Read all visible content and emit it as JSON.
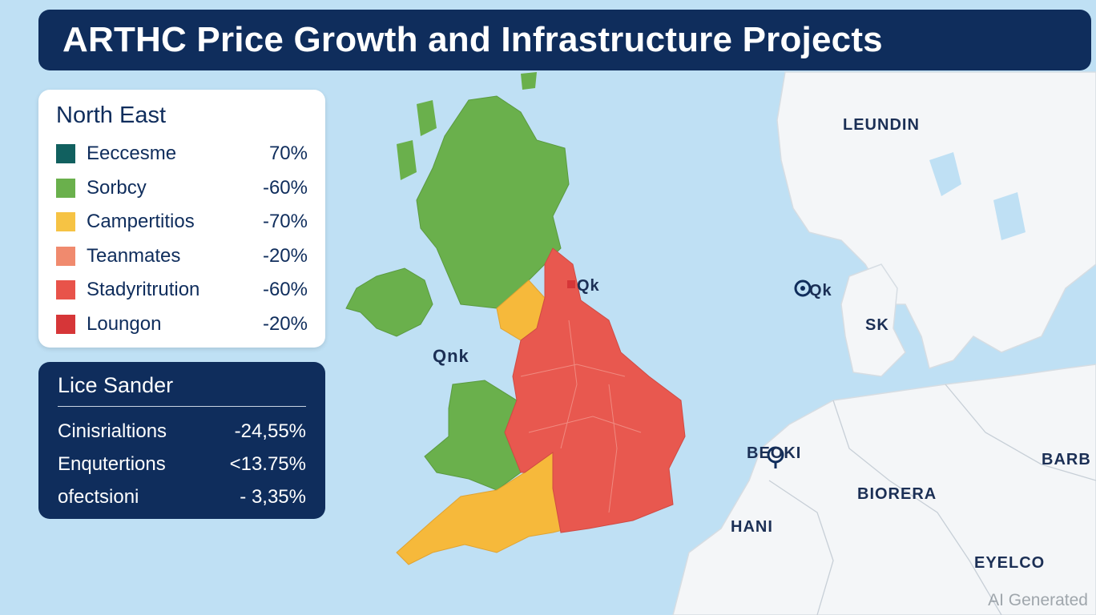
{
  "title": "ARTHC Price Growth and Infrastructure Projects",
  "legend": {
    "title": "North East",
    "items": [
      {
        "label": "Eeccesme",
        "value": "70%",
        "color": "#11605f"
      },
      {
        "label": "Sorbcy",
        "value": "-60%",
        "color": "#6ab04c"
      },
      {
        "label": "Campertitios",
        "value": "-70%",
        "color": "#f6c344"
      },
      {
        "label": "Teanmates",
        "value": "-20%",
        "color": "#f08a6e"
      },
      {
        "label": "Stadyritrution",
        "value": "-60%",
        "color": "#e8534a"
      },
      {
        "label": "Loungon",
        "value": "-20%",
        "color": "#d63638"
      }
    ]
  },
  "stats": {
    "title": "Lice Sander",
    "rows": [
      {
        "label": "Cinisrialtions",
        "value": "-24,55%"
      },
      {
        "label": "Enqutertions",
        "value": "<13.75%"
      },
      {
        "label": "ofectsioni",
        "value": "- 3,35%"
      }
    ]
  },
  "map_labels": {
    "leundin": "LEUNDIN",
    "qk_east": "Qk",
    "sk": "SK",
    "qk_uk": "Qk",
    "qnk": "Qnk",
    "beoki": "BEOKI",
    "barb": "BARB",
    "biorera": "BIORERA",
    "hani": "HANI",
    "eyelco": "EYELCO"
  },
  "colors": {
    "sea": "#bfe0f4",
    "land": "#f4f6f8",
    "green": "#6ab04c",
    "yellow": "#f6b93b",
    "red": "#e8584f",
    "navy": "#0f2d5c"
  },
  "watermark": "AI Generated"
}
